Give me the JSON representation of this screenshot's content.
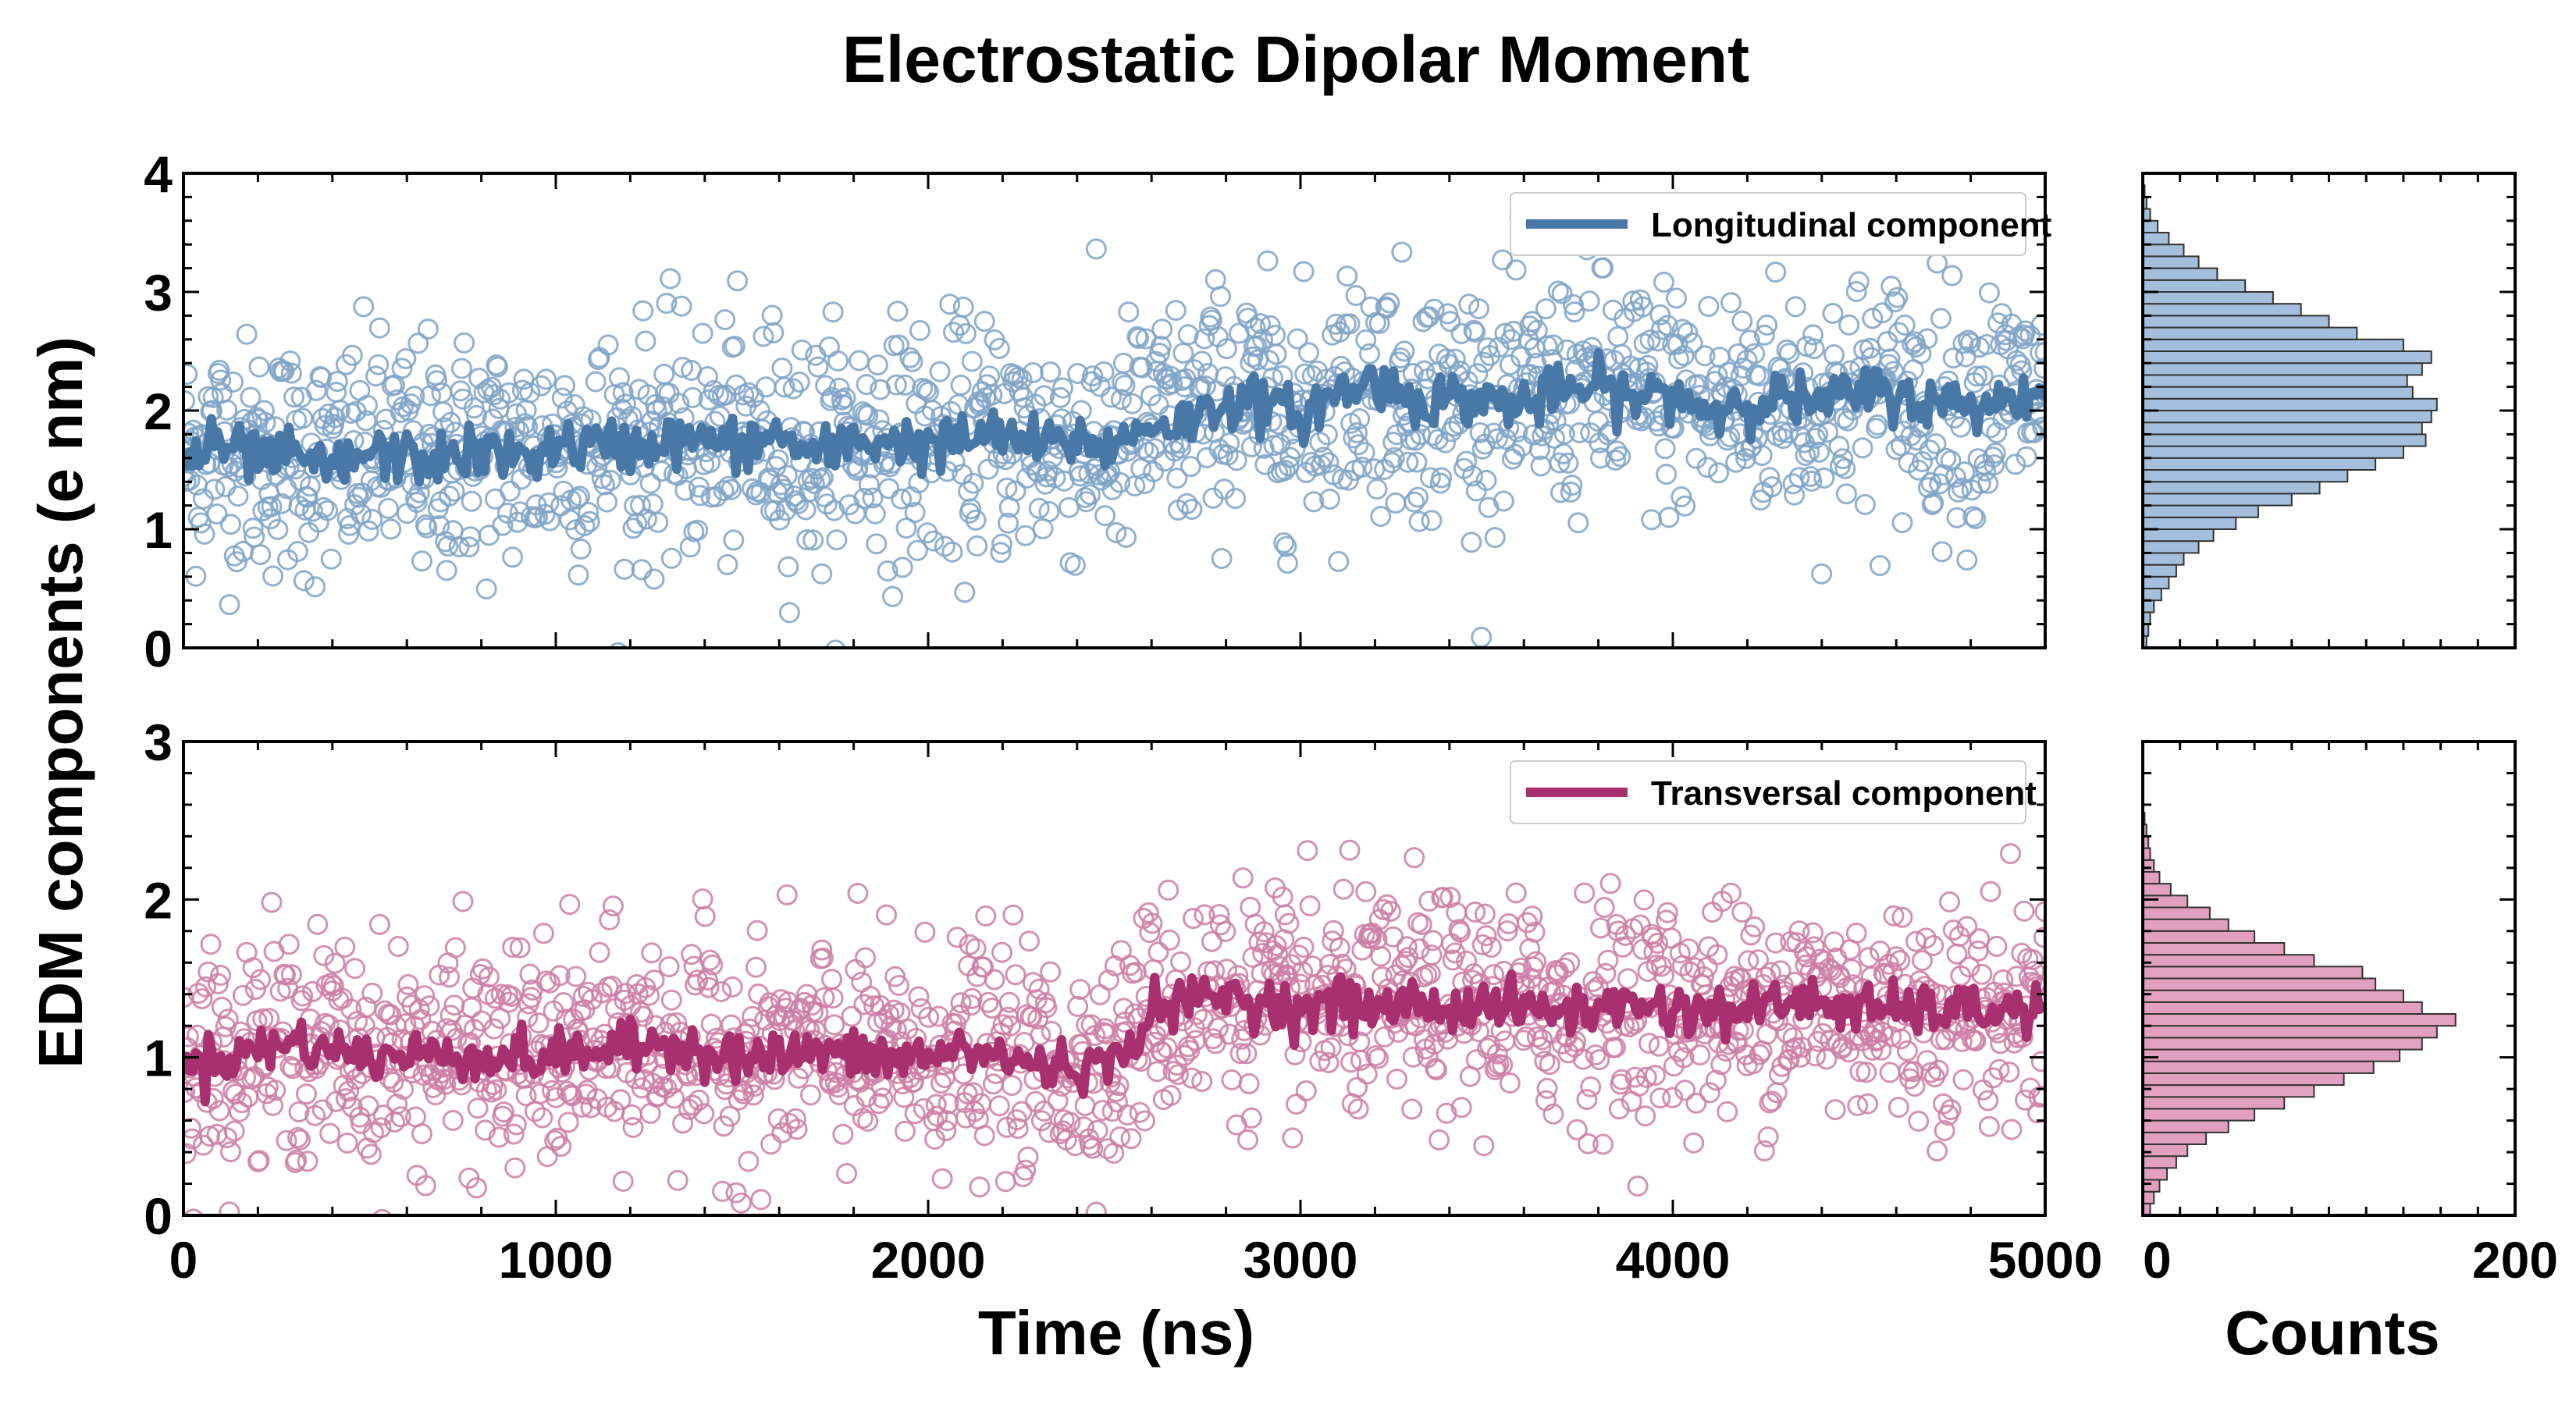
{
  "chart_data": [
    {
      "type": "scatter",
      "panel": "top-main",
      "title": "Electrostatic Dipolar Moment",
      "xlabel": "Time (ns)",
      "ylabel": "EDM components (e nm)",
      "xlim": [
        0,
        5000
      ],
      "ylim": [
        0,
        4
      ],
      "yticks": [
        "0",
        "1",
        "2",
        "3",
        "4"
      ],
      "legend": {
        "label": "Longitudinal component",
        "position": "top-right"
      },
      "color_scatter": "#7fa3c7",
      "color_line": "#4a78a6",
      "trend": {
        "x": [
          0,
          100,
          200,
          300,
          400,
          500,
          600,
          700,
          800,
          900,
          1000,
          1100,
          1200,
          1300,
          1400,
          1500,
          1600,
          1700,
          1800,
          1900,
          2000,
          2100,
          2200,
          2300,
          2400,
          2500,
          2600,
          2700,
          2800,
          2900,
          3000,
          3100,
          3200,
          3300,
          3400,
          3500,
          3600,
          3700,
          3800,
          3900,
          4000,
          4100,
          4200,
          4300,
          4400,
          4500,
          4600,
          4700,
          4800,
          4900,
          5000
        ],
        "values": [
          1.6,
          1.7,
          1.6,
          1.6,
          1.5,
          1.65,
          1.6,
          1.6,
          1.65,
          1.6,
          1.7,
          1.7,
          1.7,
          1.75,
          1.75,
          1.7,
          1.8,
          1.6,
          1.75,
          1.75,
          1.7,
          1.75,
          1.8,
          1.7,
          1.75,
          1.7,
          1.9,
          1.9,
          2.1,
          2.05,
          1.95,
          2.15,
          2.25,
          2.1,
          2.1,
          2.1,
          2.05,
          2.15,
          2.2,
          2.1,
          2.15,
          2.0,
          2.1,
          2.1,
          2.05,
          2.15,
          2.15,
          2.05,
          2.05,
          2.1,
          2.15
        ]
      },
      "scatter_spread": 0.5,
      "scatter_count": 1500
    },
    {
      "type": "scatter",
      "panel": "bottom-main",
      "xlabel": "Time (ns)",
      "xlim": [
        0,
        5000
      ],
      "ylim": [
        0,
        3
      ],
      "yticks": [
        "0",
        "1",
        "2",
        "3"
      ],
      "xticks": [
        "0",
        "1000",
        "2000",
        "3000",
        "4000",
        "5000"
      ],
      "legend": {
        "label": "Transversal component",
        "position": "top-right"
      },
      "color_scatter": "#cc7ea6",
      "color_line": "#a8306e",
      "trend": {
        "x": [
          0,
          100,
          200,
          300,
          400,
          500,
          600,
          700,
          800,
          900,
          1000,
          1100,
          1200,
          1300,
          1400,
          1500,
          1600,
          1700,
          1800,
          1900,
          2000,
          2100,
          2200,
          2300,
          2400,
          2500,
          2600,
          2700,
          2800,
          2900,
          3000,
          3100,
          3200,
          3300,
          3400,
          3500,
          3600,
          3700,
          3800,
          3900,
          4000,
          4100,
          4200,
          4300,
          4400,
          4500,
          4600,
          4700,
          4800,
          4900,
          5000
        ],
        "values": [
          0.95,
          1.0,
          1.05,
          1.1,
          1.05,
          1.0,
          1.0,
          1.05,
          1.0,
          1.0,
          1.0,
          1.05,
          1.05,
          1.1,
          1.05,
          1.0,
          1.0,
          1.05,
          1.0,
          1.0,
          1.0,
          1.05,
          1.0,
          0.95,
          0.95,
          0.95,
          1.3,
          1.35,
          1.4,
          1.35,
          1.3,
          1.35,
          1.3,
          1.35,
          1.3,
          1.35,
          1.3,
          1.3,
          1.3,
          1.35,
          1.3,
          1.3,
          1.3,
          1.35,
          1.35,
          1.3,
          1.3,
          1.3,
          1.3,
          1.3,
          1.3
        ]
      },
      "scatter_spread": 0.35,
      "scatter_count": 1500
    },
    {
      "type": "bar",
      "panel": "top-hist",
      "orientation": "horizontal",
      "xlim": [
        0,
        200
      ],
      "ylim": [
        0,
        4
      ],
      "bin_edges_start": 0.0,
      "bin_width": 0.1,
      "counts": [
        2,
        3,
        4,
        6,
        10,
        14,
        18,
        22,
        30,
        38,
        50,
        62,
        80,
        95,
        110,
        125,
        140,
        152,
        150,
        155,
        158,
        145,
        142,
        150,
        155,
        140,
        115,
        100,
        85,
        70,
        55,
        40,
        30,
        22,
        14,
        8,
        4,
        2,
        1,
        0,
        0
      ],
      "color": "#a4bfdb"
    },
    {
      "type": "bar",
      "panel": "bottom-hist",
      "orientation": "horizontal",
      "xlim": [
        0,
        200
      ],
      "ylim": [
        0,
        3
      ],
      "xticks": [
        "0",
        "200"
      ],
      "xlabel": "Counts",
      "bin_edges_start": 0.0,
      "bin_width": 0.075,
      "counts": [
        4,
        6,
        9,
        13,
        18,
        24,
        34,
        46,
        60,
        76,
        92,
        108,
        124,
        138,
        150,
        158,
        168,
        150,
        140,
        125,
        118,
        92,
        76,
        60,
        46,
        36,
        24,
        15,
        9,
        6,
        4,
        3,
        2,
        1,
        0,
        0,
        0,
        0,
        0,
        0
      ],
      "color": "#e2a0c1"
    }
  ]
}
